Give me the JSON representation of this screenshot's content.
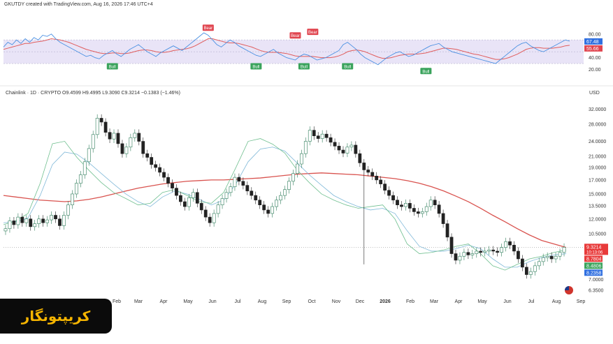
{
  "header": {
    "credit": "GKUTDY created with TradingView.com, Aug 16, 2026 17:46 UTC+4",
    "symbol_line": "Chainlink · 1D · CRYPTO  O9.4599  H9.4995  L9.3090  C9.3214  −0.1383 (−1.46%)",
    "currency": "USD"
  },
  "logo": {
    "text": "کریپتونگار",
    "color": "#f5b400"
  },
  "colors": {
    "up": "#2f7d5b",
    "down": "#222222",
    "ma_long": "#d9534f",
    "ma_mid": "#7fb8d8",
    "ma_short": "#6fbf8f",
    "rsi": "#4a90e2",
    "rsi_ma": "#e05d5d",
    "rsi_band": "#e9e4f7",
    "bear": "#e0454f",
    "bull": "#3aa35c"
  },
  "chart_data": [
    {
      "type": "line",
      "pane": "oscillator",
      "ylim": [
        10,
        88
      ],
      "y_ticks": [
        "80.00",
        "40.00",
        "20.00"
      ],
      "band": [
        30,
        70
      ],
      "series": [
        {
          "values": [
            58,
            66,
            62,
            70,
            64,
            72,
            66,
            74,
            70,
            78,
            76,
            80,
            72,
            66,
            62,
            58,
            54,
            50,
            46,
            42,
            44,
            40,
            38,
            44,
            48,
            52,
            46,
            42,
            48,
            54,
            58,
            62,
            56,
            50,
            46,
            42,
            48,
            52,
            56,
            60,
            56,
            52,
            58,
            64,
            70,
            76,
            82,
            78,
            70,
            62,
            58,
            64,
            70,
            66,
            60,
            56,
            52,
            48,
            44,
            42,
            46,
            50,
            54,
            48,
            44,
            40,
            38,
            36,
            42,
            46,
            44,
            40,
            36,
            38,
            40,
            44,
            48,
            52,
            62,
            66,
            60,
            54,
            46,
            40,
            36,
            32,
            28,
            34,
            40,
            44,
            48,
            50,
            46,
            42,
            44,
            48,
            52,
            56,
            60,
            62,
            64,
            58,
            54,
            50,
            48,
            46,
            44,
            42,
            40,
            38,
            36,
            34,
            32,
            30,
            36,
            42,
            48,
            54,
            60,
            64,
            66,
            60,
            56,
            52,
            50,
            54,
            58,
            62,
            66,
            70,
            68
          ]
        },
        {
          "values": [
            54,
            56,
            58,
            60,
            62,
            64,
            64,
            66,
            67,
            68,
            70,
            72,
            71,
            70,
            68,
            66,
            63,
            60,
            57,
            54,
            52,
            50,
            48,
            47,
            47,
            48,
            48,
            47,
            47,
            48,
            50,
            52,
            53,
            53,
            52,
            50,
            49,
            49,
            50,
            52,
            53,
            54,
            55,
            57,
            60,
            64,
            68,
            72,
            72,
            70,
            68,
            66,
            65,
            65,
            64,
            62,
            60,
            58,
            55,
            52,
            50,
            49,
            49,
            49,
            48,
            47,
            45,
            43,
            42,
            42,
            42,
            42,
            41,
            40,
            40,
            40,
            41,
            43,
            46,
            50,
            52,
            53,
            52,
            50,
            47,
            44,
            41,
            39,
            39,
            40,
            42,
            44,
            45,
            46,
            46,
            46,
            47,
            48,
            50,
            52,
            54,
            56,
            56,
            55,
            54,
            52,
            50,
            48,
            46,
            45,
            43,
            41,
            39,
            37,
            37,
            38,
            40,
            43,
            46,
            50,
            54,
            56,
            57,
            57,
            56,
            56,
            56,
            57,
            58,
            60,
            61
          ]
        }
      ],
      "signals": [
        {
          "label": "Bear",
          "index": 47,
          "value": 83
        },
        {
          "label": "Bear",
          "index": 67,
          "value": 70
        },
        {
          "label": "Bear",
          "index": 71,
          "value": 76
        },
        {
          "label": "Bull",
          "index": 25,
          "value": 33
        },
        {
          "label": "Bull",
          "index": 58,
          "value": 33
        },
        {
          "label": "Bull",
          "index": 69,
          "value": 33
        },
        {
          "label": "Bull",
          "index": 79,
          "value": 33
        },
        {
          "label": "Bull",
          "index": 97,
          "value": 25
        }
      ],
      "last_values": [
        "67.48",
        "55.66"
      ]
    },
    {
      "type": "candlestick",
      "pane": "price",
      "scale": "log",
      "ylim": [
        6.0,
        35.0
      ],
      "y_ticks": [
        "32.0000",
        "28.0000",
        "24.0000",
        "21.0000",
        "19.0000",
        "17.0000",
        "15.0000",
        "13.5000",
        "12.0000",
        "10.5000",
        "7.0000",
        "6.3500"
      ],
      "x_labels": [
        "Feb",
        "Mar",
        "Apr",
        "May",
        "Jun",
        "Jul",
        "Aug",
        "Sep",
        "Oct",
        "Nov",
        "Dec",
        "2026",
        "Feb",
        "Mar",
        "Apr",
        "May",
        "Jun",
        "Jul",
        "Aug",
        "Sep"
      ],
      "closes": [
        11.0,
        11.8,
        11.4,
        12.2,
        11.6,
        12.0,
        11.2,
        11.5,
        12.0,
        11.6,
        11.9,
        12.4,
        12.0,
        11.3,
        12.4,
        13.6,
        15.0,
        16.5,
        17.8,
        20.0,
        22.5,
        25.5,
        29.5,
        28.5,
        26.0,
        24.5,
        25.8,
        23.5,
        21.5,
        22.8,
        24.8,
        25.8,
        24.0,
        21.5,
        20.8,
        19.5,
        19.0,
        18.2,
        17.4,
        16.5,
        15.8,
        14.8,
        14.0,
        13.4,
        14.5,
        15.2,
        13.8,
        13.0,
        12.2,
        11.6,
        12.6,
        13.6,
        14.4,
        15.2,
        16.0,
        17.4,
        16.8,
        16.2,
        15.4,
        14.8,
        14.2,
        13.6,
        13.0,
        12.6,
        13.4,
        14.2,
        14.8,
        15.6,
        16.8,
        18.0,
        19.6,
        21.5,
        24.0,
        26.5,
        25.2,
        24.6,
        25.6,
        24.8,
        23.8,
        23.0,
        22.2,
        21.6,
        22.8,
        23.2,
        21.5,
        19.8,
        18.6,
        18.2,
        17.6,
        17.0,
        16.4,
        15.5,
        14.8,
        14.2,
        13.6,
        13.4,
        13.8,
        13.2,
        12.8,
        12.6,
        12.8,
        13.4,
        14.2,
        13.6,
        12.6,
        11.5,
        10.2,
        8.8,
        8.3,
        8.6,
        8.9,
        8.7,
        8.8,
        9.0,
        8.9,
        9.0,
        9.1,
        9.0,
        8.9,
        9.3,
        9.8,
        9.5,
        9.0,
        8.4,
        7.8,
        7.3,
        7.5,
        7.9,
        8.2,
        8.5,
        8.6,
        8.4,
        8.6,
        8.9,
        9.32
      ],
      "moving_averages": [
        {
          "values": [
            14.8,
            14.6,
            14.4,
            14.2,
            14.1,
            14.0,
            14.1,
            14.3,
            14.6,
            15.0,
            15.4,
            15.8,
            16.1,
            16.4,
            16.6,
            16.8,
            16.9,
            17.0,
            17.0,
            17.1,
            17.2,
            17.3,
            17.5,
            17.7,
            17.9,
            18.0,
            18.1,
            18.0,
            17.9,
            17.8,
            17.6,
            17.4,
            17.2,
            16.9,
            16.5,
            16.0,
            15.4,
            14.7,
            14.0,
            13.2,
            12.4,
            11.7,
            11.0,
            10.4,
            9.9,
            9.6,
            9.3
          ]
        },
        {
          "values": [
            11.6,
            11.7,
            12.1,
            14.8,
            19.5,
            21.8,
            21.4,
            19.8,
            18.0,
            16.4,
            15.0,
            14.0,
            13.4,
            14.6,
            15.4,
            15.0,
            14.3,
            13.6,
            14.2,
            16.4,
            20.0,
            22.4,
            22.8,
            22.0,
            19.8,
            17.8,
            16.2,
            14.8,
            14.0,
            13.4,
            13.0,
            13.2,
            12.6,
            10.8,
            9.4,
            9.0,
            9.0,
            9.2,
            9.5,
            9.2,
            8.4,
            7.8,
            7.8,
            8.2,
            8.5,
            8.7,
            8.8
          ]
        },
        {
          "values": [
            11.4,
            11.8,
            12.6,
            16.5,
            23.5,
            24.0,
            20.8,
            18.5,
            16.6,
            15.2,
            14.4,
            13.6,
            13.8,
            15.2,
            15.6,
            14.8,
            14.0,
            13.8,
            15.2,
            19.0,
            24.0,
            24.6,
            23.4,
            21.6,
            18.6,
            16.6,
            15.0,
            14.2,
            13.6,
            13.2,
            13.4,
            13.6,
            12.0,
            9.6,
            8.8,
            8.9,
            9.1,
            9.4,
            9.6,
            8.8,
            7.9,
            7.6,
            8.0,
            8.4,
            8.6,
            8.9,
            9.1
          ]
        }
      ],
      "price_labels": [
        {
          "value": "9.3214",
          "sub": "10:13:06",
          "color": "#e83a3a"
        },
        {
          "value": "8.7804",
          "color": "#e83a3a"
        },
        {
          "value": "8.4806",
          "color": "#3aa35c"
        },
        {
          "value": "8.2358",
          "color": "#2f6fe0"
        }
      ]
    }
  ]
}
